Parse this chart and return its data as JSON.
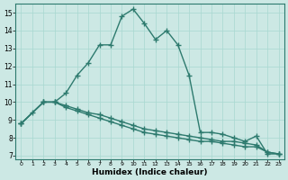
{
  "title": "",
  "xlabel": "Humidex (Indice chaleur)",
  "ylabel": "",
  "bg_color": "#cce8e4",
  "line_color": "#2d7a6e",
  "xlim": [
    -0.5,
    23.5
  ],
  "ylim": [
    6.8,
    15.5
  ],
  "yticks": [
    7,
    8,
    9,
    10,
    11,
    12,
    13,
    14,
    15
  ],
  "xticks": [
    0,
    1,
    2,
    3,
    4,
    5,
    6,
    7,
    8,
    9,
    10,
    11,
    12,
    13,
    14,
    15,
    16,
    17,
    18,
    19,
    20,
    21,
    22,
    23
  ],
  "series": [
    {
      "x": [
        0,
        1,
        2,
        3,
        4,
        5,
        6,
        7,
        8,
        9,
        10,
        11,
        12,
        13,
        14,
        15,
        16,
        17,
        18,
        19,
        20,
        21,
        22,
        23
      ],
      "y": [
        8.8,
        9.4,
        10.0,
        10.0,
        10.5,
        11.5,
        12.2,
        13.2,
        13.2,
        14.8,
        15.2,
        14.4,
        13.5,
        14.0,
        13.2,
        11.5,
        8.3,
        8.3,
        8.2,
        8.0,
        7.8,
        8.1,
        7.1,
        7.1
      ]
    },
    {
      "x": [
        0,
        2,
        3,
        4,
        5,
        6,
        7,
        8,
        9,
        10,
        11,
        12,
        13,
        14,
        15,
        16,
        17,
        18,
        19,
        20,
        21,
        22,
        23
      ],
      "y": [
        8.8,
        10.0,
        10.0,
        9.8,
        9.6,
        9.4,
        9.3,
        9.1,
        8.9,
        8.7,
        8.5,
        8.4,
        8.3,
        8.2,
        8.1,
        8.0,
        7.9,
        7.8,
        7.8,
        7.7,
        7.6,
        7.2,
        7.1
      ]
    },
    {
      "x": [
        0,
        2,
        3,
        4,
        5,
        6,
        7,
        8,
        9,
        10,
        11,
        12,
        13,
        14,
        15,
        16,
        17,
        18,
        19,
        20,
        21,
        22,
        23
      ],
      "y": [
        8.8,
        10.0,
        10.0,
        9.7,
        9.5,
        9.3,
        9.1,
        8.9,
        8.7,
        8.5,
        8.3,
        8.2,
        8.1,
        8.0,
        7.9,
        7.8,
        7.8,
        7.7,
        7.6,
        7.5,
        7.5,
        7.2,
        7.1
      ]
    }
  ],
  "grid_color": "#a8d8d0",
  "marker": "+",
  "markersize": 4,
  "linewidth": 1.0
}
